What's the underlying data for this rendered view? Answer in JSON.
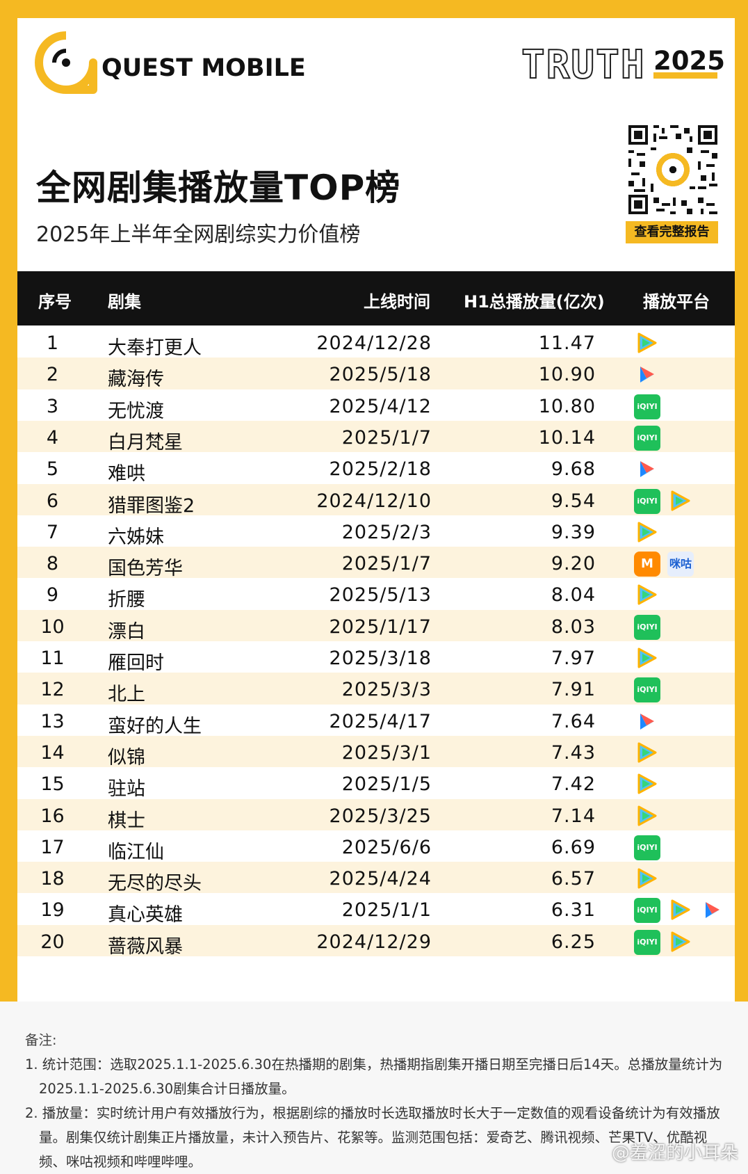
{
  "brand": {
    "logo_text": "QUEST MOBILE",
    "truth_text": "TRUTH",
    "truth_year": "2025",
    "accent_color": "#f5b922"
  },
  "header": {
    "title": "全网剧集播放量TOP榜",
    "subtitle": "2025年上半年全网剧综实力价值榜",
    "qr_button": "查看完整报告"
  },
  "table": {
    "columns": [
      "序号",
      "剧集",
      "上线时间",
      "H1总播放量(亿次)",
      "播放平台"
    ],
    "rows": [
      {
        "rank": "1",
        "name": "大奉打更人",
        "date": "2024/12/28",
        "plays": "11.47",
        "platforms": [
          "tencent"
        ]
      },
      {
        "rank": "2",
        "name": "藏海传",
        "date": "2025/5/18",
        "plays": "10.90",
        "platforms": [
          "youku"
        ]
      },
      {
        "rank": "3",
        "name": "无忧渡",
        "date": "2025/4/12",
        "plays": "10.80",
        "platforms": [
          "iqiyi"
        ]
      },
      {
        "rank": "4",
        "name": "白月梵星",
        "date": "2025/1/7",
        "plays": "10.14",
        "platforms": [
          "iqiyi"
        ]
      },
      {
        "rank": "5",
        "name": "难哄",
        "date": "2025/2/18",
        "plays": "9.68",
        "platforms": [
          "youku"
        ]
      },
      {
        "rank": "6",
        "name": "猎罪图鉴2",
        "date": "2024/12/10",
        "plays": "9.54",
        "platforms": [
          "iqiyi",
          "tencent"
        ]
      },
      {
        "rank": "7",
        "name": "六姊妹",
        "date": "2025/2/3",
        "plays": "9.39",
        "platforms": [
          "tencent"
        ]
      },
      {
        "rank": "8",
        "name": "国色芳华",
        "date": "2025/1/7",
        "plays": "9.20",
        "platforms": [
          "mango",
          "migu"
        ]
      },
      {
        "rank": "9",
        "name": "折腰",
        "date": "2025/5/13",
        "plays": "8.04",
        "platforms": [
          "tencent"
        ]
      },
      {
        "rank": "10",
        "name": "漂白",
        "date": "2025/1/17",
        "plays": "8.03",
        "platforms": [
          "iqiyi"
        ]
      },
      {
        "rank": "11",
        "name": "雁回时",
        "date": "2025/3/18",
        "plays": "7.97",
        "platforms": [
          "tencent"
        ]
      },
      {
        "rank": "12",
        "name": "北上",
        "date": "2025/3/3",
        "plays": "7.91",
        "platforms": [
          "iqiyi"
        ]
      },
      {
        "rank": "13",
        "name": "蛮好的人生",
        "date": "2025/4/17",
        "plays": "7.64",
        "platforms": [
          "youku"
        ]
      },
      {
        "rank": "14",
        "name": "似锦",
        "date": "2025/3/1",
        "plays": "7.43",
        "platforms": [
          "tencent"
        ]
      },
      {
        "rank": "15",
        "name": "驻站",
        "date": "2025/1/5",
        "plays": "7.42",
        "platforms": [
          "tencent"
        ]
      },
      {
        "rank": "16",
        "name": "棋士",
        "date": "2025/3/25",
        "plays": "7.14",
        "platforms": [
          "tencent"
        ]
      },
      {
        "rank": "17",
        "name": "临江仙",
        "date": "2025/6/6",
        "plays": "6.69",
        "platforms": [
          "iqiyi"
        ]
      },
      {
        "rank": "18",
        "name": "无尽的尽头",
        "date": "2025/4/24",
        "plays": "6.57",
        "platforms": [
          "tencent"
        ]
      },
      {
        "rank": "19",
        "name": "真心英雄",
        "date": "2025/1/1",
        "plays": "6.31",
        "platforms": [
          "iqiyi",
          "tencent",
          "youku"
        ]
      },
      {
        "rank": "20",
        "name": "蔷薇风暴",
        "date": "2024/12/29",
        "plays": "6.25",
        "platforms": [
          "iqiyi",
          "tencent"
        ]
      }
    ]
  },
  "platform_labels": {
    "iqiyi": "iQIYI",
    "mango": "M",
    "migu": "咪咕"
  },
  "notes": {
    "title": "备注:",
    "items": [
      "1. 统计范围：选取2025.1.1-2025.6.30在热播期的剧集，热播期指剧集开播日期至完播日后14天。总播放量统计为2025.1.1-2025.6.30剧集合计日播放量。",
      "2. 播放量：实时统计用户有效播放行为，根据剧综的播放时长选取播放时长大于一定数值的观看设备统计为有效播放量。剧集仅统计剧集正片播放量，未计入预告片、花絮等。监测范围包括：爱奇艺、腾讯视频、芒果TV、优酷视频、咪咕视频和哔哩哔哩。"
    ]
  },
  "watermark": "@羞涩的小耳朵"
}
